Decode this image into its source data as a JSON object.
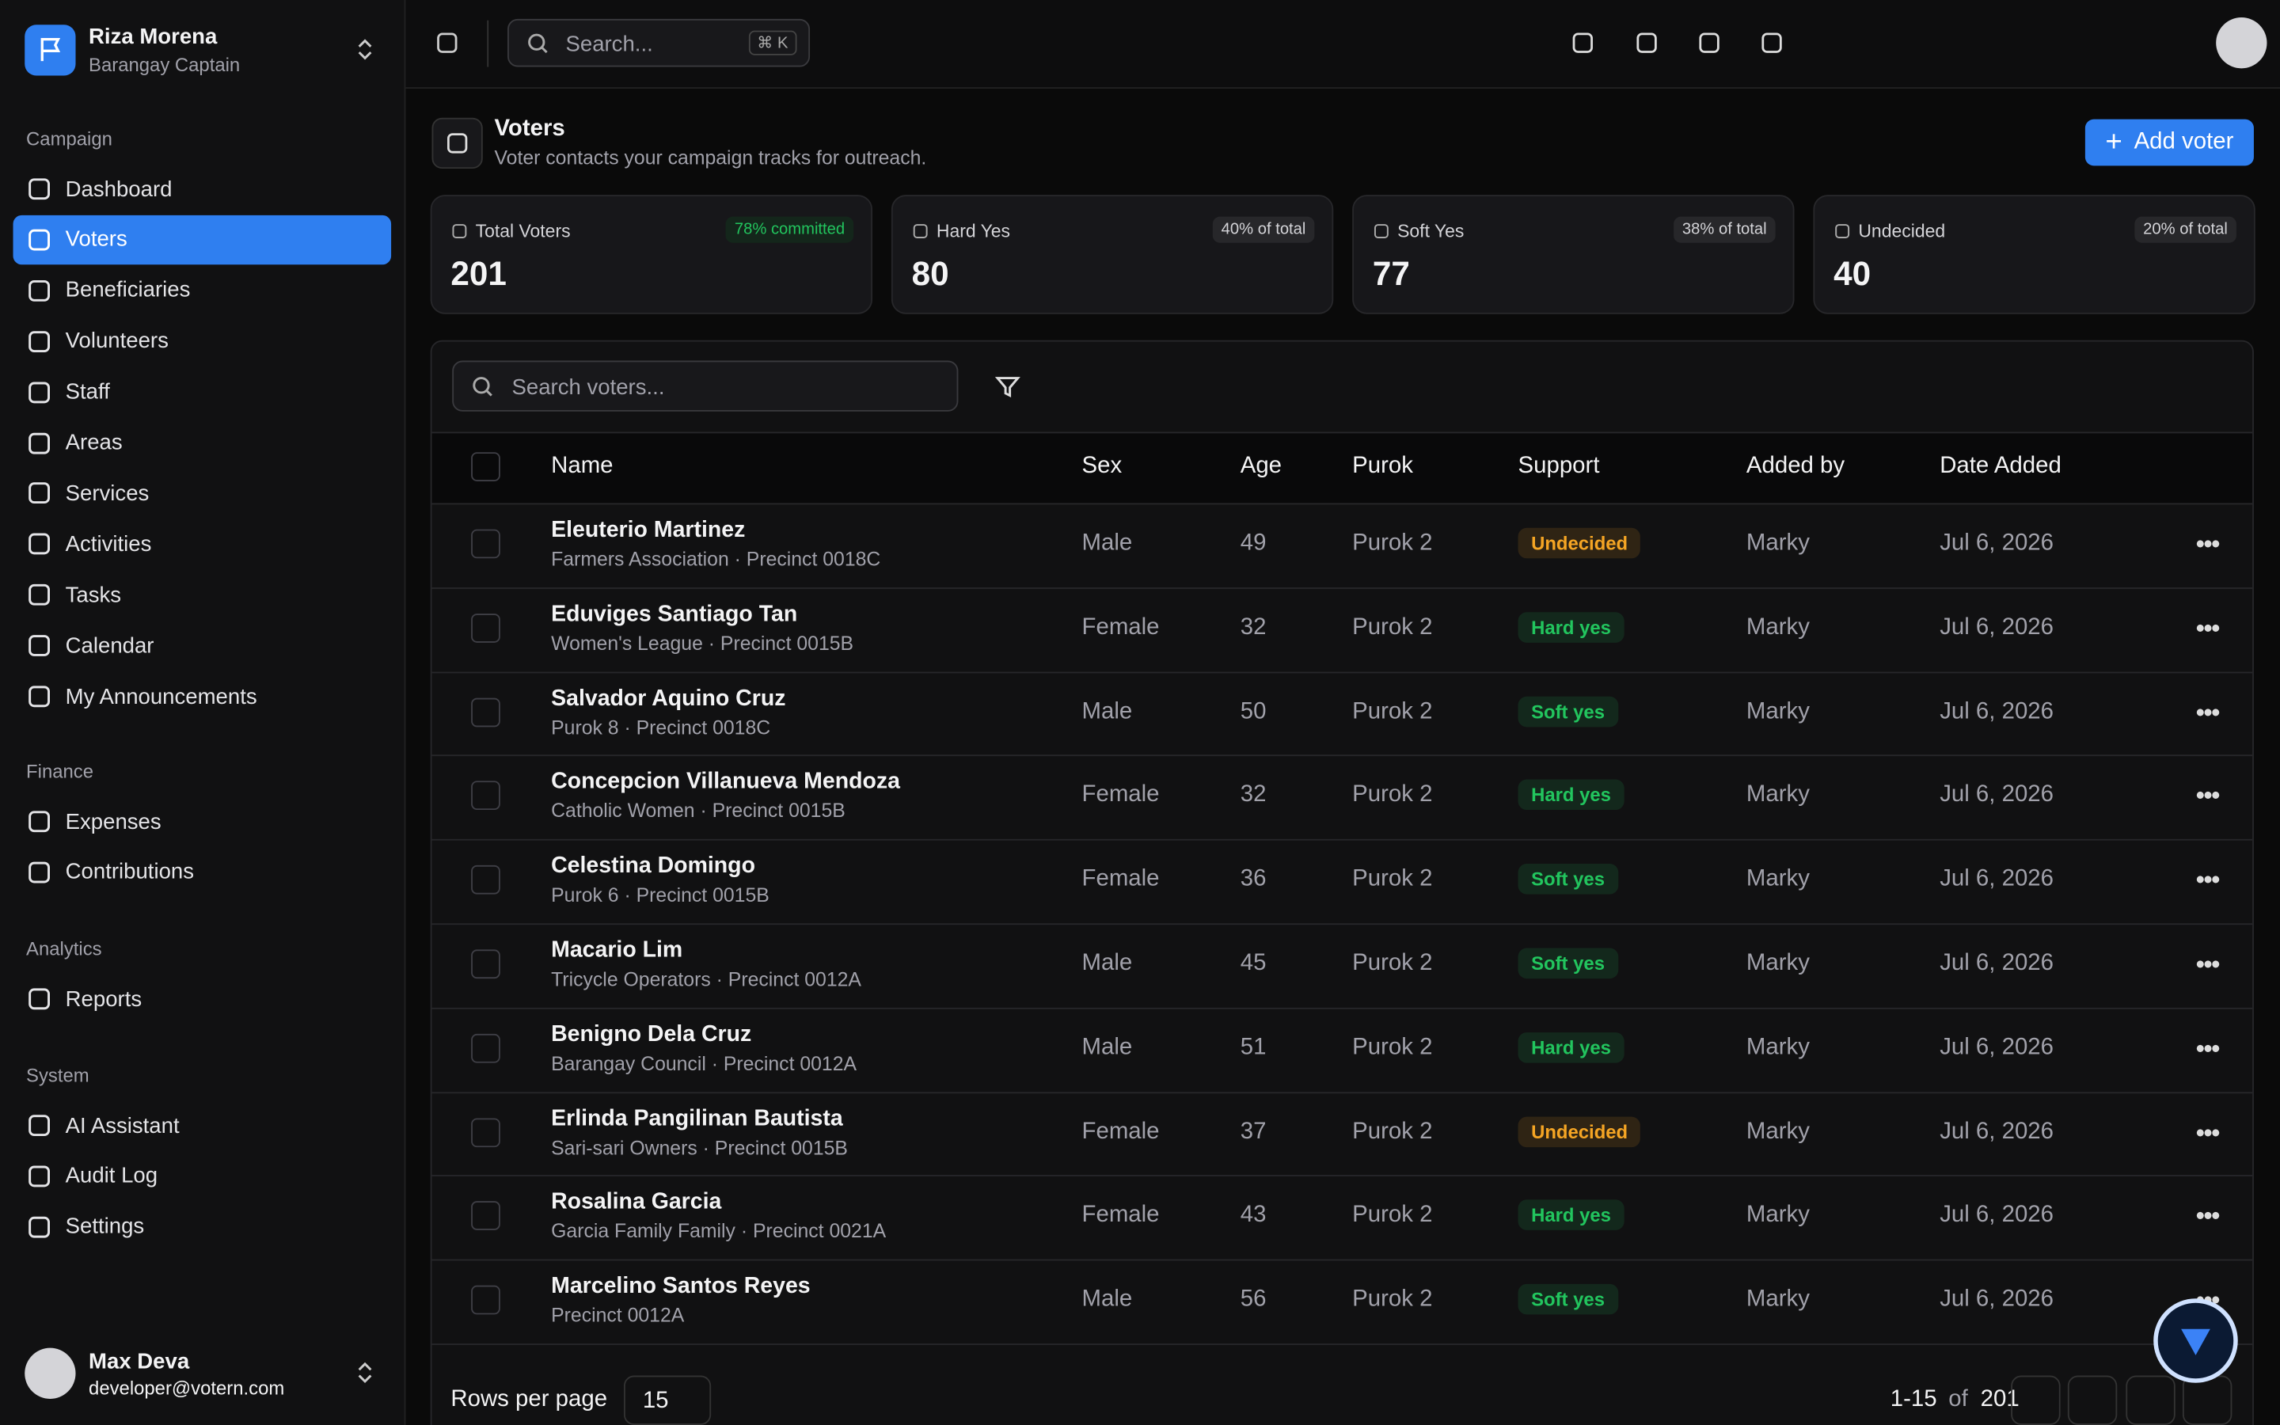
{
  "sidebar": {
    "user": {
      "name": "Riza Morena",
      "role": "Barangay Captain"
    },
    "groups": [
      {
        "label": "Campaign",
        "items": [
          "Dashboard",
          "Voters",
          "Beneficiaries",
          "Volunteers",
          "Staff",
          "Areas",
          "Services",
          "Activities",
          "Tasks",
          "Calendar",
          "My Announcements"
        ]
      },
      {
        "label": "Finance",
        "items": [
          "Expenses",
          "Contributions"
        ]
      },
      {
        "label": "Analytics",
        "items": [
          "Reports"
        ]
      },
      {
        "label": "System",
        "items": [
          "AI Assistant",
          "Audit Log",
          "Settings"
        ]
      }
    ],
    "active": "Voters",
    "account": {
      "name": "Max Deva",
      "email": "developer@votern.com"
    }
  },
  "topbar": {
    "search_placeholder": "Search...",
    "shortcut": "⌘ K"
  },
  "page": {
    "title": "Voters",
    "subtitle": "Voter contacts your campaign tracks for outreach.",
    "add_button": "Add voter"
  },
  "stats": [
    {
      "label": "Total Voters",
      "badge": "78% committed",
      "value": 201
    },
    {
      "label": "Hard Yes",
      "badge": "40% of total",
      "value": 80
    },
    {
      "label": "Soft Yes",
      "badge": "38% of total",
      "value": 77
    },
    {
      "label": "Undecided",
      "badge": "20% of total",
      "value": 40
    }
  ],
  "table": {
    "search_placeholder": "Search voters...",
    "columns": [
      "Name",
      "Sex",
      "Age",
      "Purok",
      "Support",
      "Added by",
      "Date Added"
    ],
    "rows": [
      {
        "name": "Eleuterio Martinez",
        "meta": "Farmers Association · Precinct 0018C",
        "sex": "Male",
        "age": 49,
        "purok": "Purok 2",
        "support": {
          "label": "Undecided",
          "color": "#f5a524"
        },
        "added_by": "Marky",
        "date": "Jul 6, 2026"
      },
      {
        "name": "Eduviges Santiago Tan",
        "meta": "Women's League · Precinct 0015B",
        "sex": "Female",
        "age": 32,
        "purok": "Purok 2",
        "support": {
          "label": "Hard yes",
          "color": "#22c55e"
        },
        "added_by": "Marky",
        "date": "Jul 6, 2026"
      },
      {
        "name": "Salvador Aquino Cruz",
        "meta": "Purok 8 · Precinct 0018C",
        "sex": "Male",
        "age": 50,
        "purok": "Purok 2",
        "support": {
          "label": "Soft yes",
          "color": "#22c55e"
        },
        "added_by": "Marky",
        "date": "Jul 6, 2026"
      },
      {
        "name": "Concepcion Villanueva Mendoza",
        "meta": "Catholic Women · Precinct 0015B",
        "sex": "Female",
        "age": 32,
        "purok": "Purok 2",
        "support": {
          "label": "Hard yes",
          "color": "#22c55e"
        },
        "added_by": "Marky",
        "date": "Jul 6, 2026"
      },
      {
        "name": "Celestina Domingo",
        "meta": "Purok 6 · Precinct 0015B",
        "sex": "Female",
        "age": 36,
        "purok": "Purok 2",
        "support": {
          "label": "Soft yes",
          "color": "#22c55e"
        },
        "added_by": "Marky",
        "date": "Jul 6, 2026"
      },
      {
        "name": "Macario Lim",
        "meta": "Tricycle Operators · Precinct 0012A",
        "sex": "Male",
        "age": 45,
        "purok": "Purok 2",
        "support": {
          "label": "Soft yes",
          "color": "#22c55e"
        },
        "added_by": "Marky",
        "date": "Jul 6, 2026"
      },
      {
        "name": "Benigno Dela Cruz",
        "meta": "Barangay Council · Precinct 0012A",
        "sex": "Male",
        "age": 51,
        "purok": "Purok 2",
        "support": {
          "label": "Hard yes",
          "color": "#22c55e"
        },
        "added_by": "Marky",
        "date": "Jul 6, 2026"
      },
      {
        "name": "Erlinda Pangilinan Bautista",
        "meta": "Sari-sari Owners · Precinct 0015B",
        "sex": "Female",
        "age": 37,
        "purok": "Purok 2",
        "support": {
          "label": "Undecided",
          "color": "#f5a524"
        },
        "added_by": "Marky",
        "date": "Jul 6, 2026"
      },
      {
        "name": "Rosalina Garcia",
        "meta": "Garcia Family Family · Precinct 0021A",
        "sex": "Female",
        "age": 43,
        "purok": "Purok 2",
        "support": {
          "label": "Hard yes",
          "color": "#22c55e"
        },
        "added_by": "Marky",
        "date": "Jul 6, 2026"
      },
      {
        "name": "Marcelino Santos Reyes",
        "meta": "Precinct 0012A",
        "sex": "Male",
        "age": 56,
        "purok": "Purok 2",
        "support": {
          "label": "Soft yes",
          "color": "#22c55e"
        },
        "added_by": "Marky",
        "date": "Jul 6, 2026"
      }
    ]
  },
  "pagination": {
    "rows_per_page_label": "Rows per page",
    "rows_per_page": 15,
    "range": "1-15",
    "of": "of",
    "total": 201
  }
}
